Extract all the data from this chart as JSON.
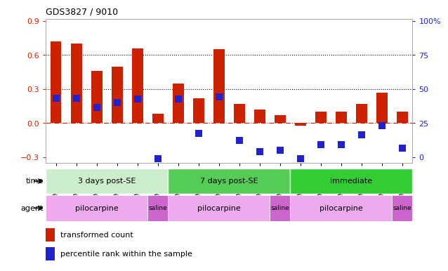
{
  "title": "GDS3827 / 9010",
  "samples": [
    "GSM367527",
    "GSM367528",
    "GSM367531",
    "GSM367532",
    "GSM367534",
    "GSM367718",
    "GSM367536",
    "GSM367538",
    "GSM367539",
    "GSM367540",
    "GSM367541",
    "GSM367719",
    "GSM367545",
    "GSM367546",
    "GSM367548",
    "GSM367549",
    "GSM367551",
    "GSM367721"
  ],
  "red_values": [
    0.72,
    0.7,
    0.46,
    0.5,
    0.66,
    0.08,
    0.35,
    0.22,
    0.65,
    0.17,
    0.12,
    0.07,
    -0.02,
    0.1,
    0.1,
    0.17,
    0.27,
    0.1
  ],
  "blue_values": [
    0.22,
    0.22,
    0.14,
    0.18,
    0.21,
    -0.31,
    0.21,
    -0.09,
    0.23,
    -0.15,
    -0.25,
    -0.24,
    -0.31,
    -0.19,
    -0.19,
    -0.1,
    -0.02,
    -0.22
  ],
  "ylim": [
    -0.35,
    0.92
  ],
  "yticks": [
    -0.3,
    0.0,
    0.3,
    0.6,
    0.9
  ],
  "y2ticks_pct": [
    0,
    25,
    50,
    75,
    100
  ],
  "hlines": [
    0.3,
    0.6
  ],
  "red_color": "#cc2200",
  "blue_color": "#2222cc",
  "zero_line_color": "#cc2200",
  "time_groups": [
    {
      "label": "3 days post-SE",
      "start": 0,
      "end": 6,
      "color": "#cceecc"
    },
    {
      "label": "7 days post-SE",
      "start": 6,
      "end": 12,
      "color": "#55cc55"
    },
    {
      "label": "immediate",
      "start": 12,
      "end": 18,
      "color": "#33cc33"
    }
  ],
  "agent_groups": [
    {
      "label": "pilocarpine",
      "start": 0,
      "end": 5,
      "color": "#eeaaee"
    },
    {
      "label": "saline",
      "start": 5,
      "end": 6,
      "color": "#cc66cc"
    },
    {
      "label": "pilocarpine",
      "start": 6,
      "end": 11,
      "color": "#eeaaee"
    },
    {
      "label": "saline",
      "start": 11,
      "end": 12,
      "color": "#cc66cc"
    },
    {
      "label": "pilocarpine",
      "start": 12,
      "end": 17,
      "color": "#eeaaee"
    },
    {
      "label": "saline",
      "start": 17,
      "end": 18,
      "color": "#cc66cc"
    }
  ],
  "legend_red": "transformed count",
  "legend_blue": "percentile rank within the sample",
  "bar_width": 0.55,
  "blue_marker_size": 7,
  "y_min": -0.3,
  "y_max": 0.9,
  "pct_min": 0,
  "pct_max": 100
}
